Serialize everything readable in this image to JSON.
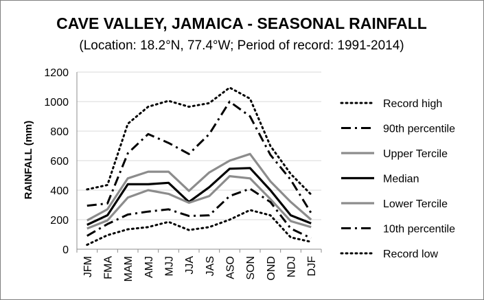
{
  "chart_data": {
    "type": "line",
    "title": "CAVE VALLEY, JAMAICA - SEASONAL RAINFALL",
    "subtitle": "(Location: 18.2°N, 77.4°W; Period of record: 1991-2014)",
    "xlabel": "",
    "ylabel": "RAINFALL (mm)",
    "ylim": [
      0,
      1200
    ],
    "yticks": [
      0,
      200,
      400,
      600,
      800,
      1000,
      1200
    ],
    "grid": "horizontal",
    "legend_position": "right",
    "categories": [
      "JFM",
      "FMA",
      "MAM",
      "AMJ",
      "MJJ",
      "JJA",
      "JAS",
      "ASO",
      "SON",
      "OND",
      "NDJ",
      "DJF"
    ],
    "series": [
      {
        "name": "Record high",
        "style": "dotted",
        "color": "#000000",
        "values": [
          405,
          435,
          850,
          965,
          1005,
          965,
          990,
          1095,
          1020,
          700,
          510,
          370
        ]
      },
      {
        "name": "90th percentile",
        "style": "dash-dot",
        "color": "#000000",
        "values": [
          295,
          310,
          650,
          780,
          720,
          645,
          780,
          1000,
          900,
          640,
          470,
          245
        ]
      },
      {
        "name": "Upper Tercile",
        "style": "solid",
        "color": "#8c8c8c",
        "values": [
          195,
          270,
          480,
          525,
          525,
          395,
          520,
          600,
          645,
          460,
          320,
          200
        ]
      },
      {
        "name": "Median",
        "style": "solid",
        "color": "#000000",
        "values": [
          165,
          230,
          440,
          440,
          450,
          320,
          420,
          545,
          550,
          400,
          230,
          175
        ]
      },
      {
        "name": "Lower Tercile",
        "style": "solid",
        "color": "#8c8c8c",
        "values": [
          140,
          195,
          350,
          400,
          375,
          315,
          360,
          495,
          480,
          340,
          190,
          150
        ]
      },
      {
        "name": "10th percentile",
        "style": "dash-dot",
        "color": "#000000",
        "values": [
          90,
          170,
          235,
          255,
          270,
          225,
          230,
          360,
          410,
          320,
          140,
          75
        ]
      },
      {
        "name": "Record low",
        "style": "dotted",
        "color": "#000000",
        "values": [
          30,
          95,
          135,
          150,
          185,
          130,
          150,
          200,
          265,
          230,
          80,
          50
        ]
      }
    ]
  }
}
